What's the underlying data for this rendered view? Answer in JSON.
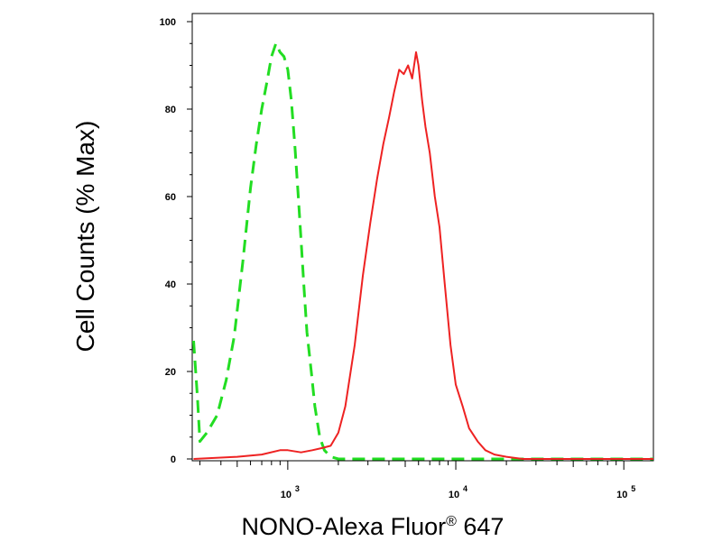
{
  "chart_data": {
    "type": "line",
    "xlabel": "NONO-Alexa Fluor",
    "xlabel_superscript": "®",
    "xlabel_suffix": " 647",
    "ylabel": "Cell Counts (% Max)",
    "x_scale": "log",
    "xlim": [
      270,
      150000
    ],
    "ylim": [
      0,
      100
    ],
    "grid": false,
    "y_ticks": [
      0,
      20,
      40,
      60,
      80,
      100
    ],
    "x_tick_labels": [
      {
        "value": 1000,
        "base": "10",
        "exp": "3"
      },
      {
        "value": 10000,
        "base": "10",
        "exp": "4"
      },
      {
        "value": 100000,
        "base": "10",
        "exp": "5"
      }
    ],
    "series": [
      {
        "color": "#22dd22",
        "style": "dashed",
        "x": [
          275,
          290,
          300,
          330,
          380,
          430,
          480,
          540,
          600,
          650,
          700,
          750,
          800,
          850,
          900,
          950,
          1000,
          1050,
          1100,
          1150,
          1200,
          1250,
          1300,
          1380,
          1450,
          1550,
          1650,
          1800,
          2000,
          3000,
          5000,
          10000,
          30000,
          100000,
          150000
        ],
        "y": [
          27,
          14,
          4,
          6,
          10,
          18,
          28,
          45,
          62,
          72,
          80,
          86,
          92,
          95,
          93,
          92,
          89,
          82,
          72,
          61,
          50,
          39,
          29,
          20,
          12,
          5,
          2,
          0.5,
          0,
          0,
          0,
          0,
          0,
          0,
          0
        ]
      },
      {
        "color": "#ee2222",
        "style": "solid",
        "x": [
          275,
          500,
          700,
          900,
          1000,
          1200,
          1400,
          1600,
          1800,
          2000,
          2200,
          2500,
          2800,
          3100,
          3400,
          3700,
          4000,
          4300,
          4600,
          4900,
          5200,
          5500,
          5800,
          6000,
          6300,
          6600,
          7000,
          7500,
          8000,
          8600,
          9300,
          10000,
          11000,
          12000,
          13500,
          15000,
          17000,
          20000,
          25000,
          40000,
          150000
        ],
        "y": [
          0,
          0.5,
          1,
          2,
          2,
          1.5,
          2,
          2.5,
          3,
          6,
          12,
          26,
          42,
          54,
          64,
          72,
          78,
          84,
          89,
          88,
          90,
          87,
          93,
          90,
          82,
          76,
          70,
          60,
          53,
          40,
          26,
          17,
          12,
          7,
          4,
          2,
          1,
          0.5,
          0,
          0,
          0
        ]
      }
    ]
  }
}
